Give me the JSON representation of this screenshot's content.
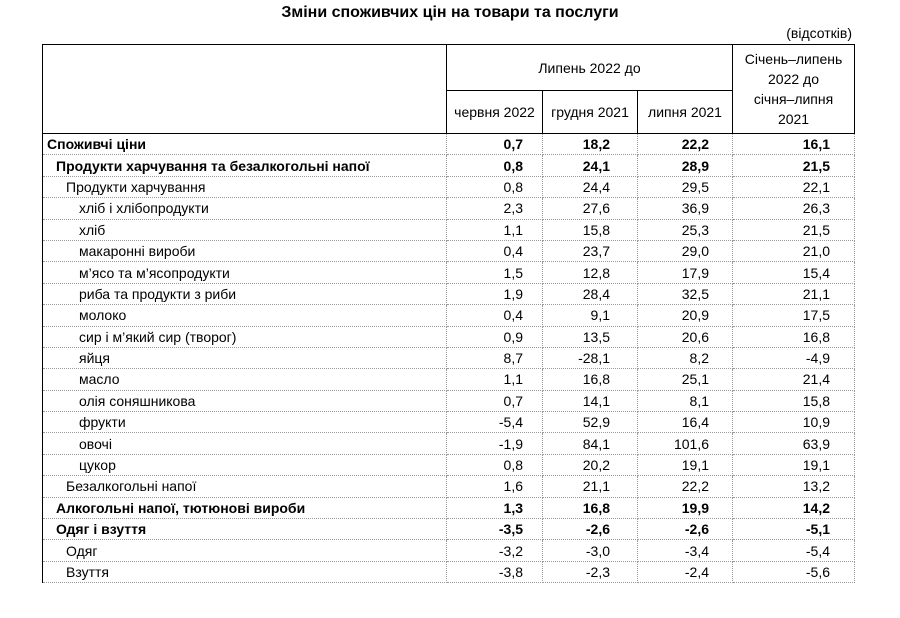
{
  "title": "Зміни споживчих цін на товари та послуги",
  "unit_note": "(відсотків)",
  "colors": {
    "text": "#000000",
    "solid_border": "#000000",
    "dotted_border": "#9a9a9a",
    "background": "#ffffff"
  },
  "table": {
    "corner_header": "",
    "group_header": "Липень 2022 до",
    "sub_headers": [
      "червня 2022",
      "грудня 2021",
      "липня 2021"
    ],
    "last_col_header_lines": [
      "Січень–липень",
      "2022 до",
      "січня–липня",
      "2021"
    ],
    "rows": [
      {
        "label": "Споживчі ціни",
        "level": 0,
        "bold": true,
        "values": [
          "0,7",
          "18,2",
          "22,2",
          "16,1"
        ]
      },
      {
        "label": "Продукти харчування та безалкогольні напої",
        "level": 1,
        "bold": true,
        "values": [
          "0,8",
          "24,1",
          "28,9",
          "21,5"
        ]
      },
      {
        "label": "Продукти харчування",
        "level": 2,
        "bold": false,
        "values": [
          "0,8",
          "24,4",
          "29,5",
          "22,1"
        ]
      },
      {
        "label": "хліб і хлібопродукти",
        "level": 3,
        "bold": false,
        "values": [
          "2,3",
          "27,6",
          "36,9",
          "26,3"
        ]
      },
      {
        "label": "хліб",
        "level": 3,
        "bold": false,
        "values": [
          "1,1",
          "15,8",
          "25,3",
          "21,5"
        ]
      },
      {
        "label": "макаронні вироби",
        "level": 3,
        "bold": false,
        "values": [
          "0,4",
          "23,7",
          "29,0",
          "21,0"
        ]
      },
      {
        "label": "м’ясо та м’ясопродукти",
        "level": 3,
        "bold": false,
        "values": [
          "1,5",
          "12,8",
          "17,9",
          "15,4"
        ]
      },
      {
        "label": "риба та продукти з риби",
        "level": 3,
        "bold": false,
        "values": [
          "1,9",
          "28,4",
          "32,5",
          "21,1"
        ]
      },
      {
        "label": "молоко",
        "level": 3,
        "bold": false,
        "values": [
          "0,4",
          "9,1",
          "20,9",
          "17,5"
        ]
      },
      {
        "label": "сир і м’який сир (творог)",
        "level": 3,
        "bold": false,
        "values": [
          "0,9",
          "13,5",
          "20,6",
          "16,8"
        ]
      },
      {
        "label": "яйця",
        "level": 3,
        "bold": false,
        "values": [
          "8,7",
          "-28,1",
          "8,2",
          "-4,9"
        ]
      },
      {
        "label": "масло",
        "level": 3,
        "bold": false,
        "values": [
          "1,1",
          "16,8",
          "25,1",
          "21,4"
        ]
      },
      {
        "label": "олія соняшникова",
        "level": 3,
        "bold": false,
        "values": [
          "0,7",
          "14,1",
          "8,1",
          "15,8"
        ]
      },
      {
        "label": "фрукти",
        "level": 3,
        "bold": false,
        "values": [
          "-5,4",
          "52,9",
          "16,4",
          "10,9"
        ]
      },
      {
        "label": "овочі",
        "level": 3,
        "bold": false,
        "values": [
          "-1,9",
          "84,1",
          "101,6",
          "63,9"
        ]
      },
      {
        "label": "цукор",
        "level": 3,
        "bold": false,
        "values": [
          "0,8",
          "20,2",
          "19,1",
          "19,1"
        ]
      },
      {
        "label": "Безалкогольні напої",
        "level": 2,
        "bold": false,
        "values": [
          "1,6",
          "21,1",
          "22,2",
          "13,2"
        ]
      },
      {
        "label": "Алкогольні напої, тютюнові вироби",
        "level": 1,
        "bold": true,
        "values": [
          "1,3",
          "16,8",
          "19,9",
          "14,2"
        ]
      },
      {
        "label": "Одяг і взуття",
        "level": 1,
        "bold": true,
        "values": [
          "-3,5",
          "-2,6",
          "-2,6",
          "-5,1"
        ]
      },
      {
        "label": "Одяг",
        "level": 2,
        "bold": false,
        "values": [
          "-3,2",
          "-3,0",
          "-3,4",
          "-5,4"
        ]
      },
      {
        "label": "Взуття",
        "level": 2,
        "bold": false,
        "values": [
          "-3,8",
          "-2,3",
          "-2,4",
          "-5,6"
        ]
      }
    ]
  }
}
